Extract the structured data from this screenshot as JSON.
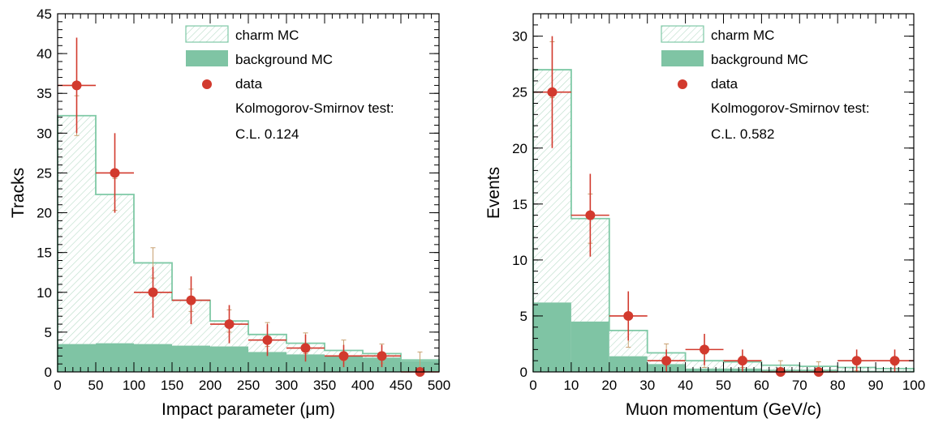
{
  "chart_data": [
    {
      "type": "histogram",
      "xlabel": "Impact parameter (μm)",
      "ylabel": "Tracks",
      "xlim": [
        0,
        500
      ],
      "ylim": [
        0,
        45
      ],
      "xticks": [
        0,
        50,
        100,
        150,
        200,
        250,
        300,
        350,
        400,
        450,
        500
      ],
      "yticks": [
        0,
        5,
        10,
        15,
        20,
        25,
        30,
        35,
        40,
        45
      ],
      "bin_edges": [
        0,
        50,
        100,
        150,
        200,
        250,
        300,
        350,
        400,
        450,
        500
      ],
      "series": [
        {
          "name": "charm MC",
          "kind": "hatched-step",
          "values": [
            32.2,
            22.3,
            13.7,
            9.0,
            6.4,
            4.7,
            3.6,
            2.7,
            2.3,
            1.5
          ],
          "errors": [
            2.5,
            2.0,
            1.9,
            1.4,
            1.4,
            1.5,
            1.3,
            1.3,
            1.2,
            1.0
          ]
        },
        {
          "name": "background MC",
          "kind": "filled",
          "values": [
            3.5,
            3.6,
            3.5,
            3.3,
            3.2,
            2.5,
            2.2,
            2.0,
            1.8,
            1.4
          ]
        },
        {
          "name": "data",
          "kind": "points",
          "values": [
            36,
            25,
            10,
            9,
            6,
            4,
            3,
            2,
            2,
            0
          ],
          "errors": [
            6.0,
            5.0,
            3.2,
            3.0,
            2.4,
            2.0,
            1.7,
            1.4,
            1.4,
            0
          ]
        }
      ],
      "legend": {
        "position": "top-right",
        "entries": [
          "charm MC",
          "background MC",
          "data"
        ],
        "notes": [
          "Kolmogorov-Smirnov test:",
          "C.L. 0.124"
        ]
      },
      "grid": false
    },
    {
      "type": "histogram",
      "xlabel": "Muon momentum (GeV/c)",
      "ylabel": "Events",
      "xlim": [
        0,
        100
      ],
      "ylim": [
        0,
        32
      ],
      "xticks": [
        0,
        10,
        20,
        30,
        40,
        50,
        60,
        70,
        80,
        90,
        100
      ],
      "yticks": [
        0,
        5,
        10,
        15,
        20,
        25,
        30
      ],
      "bin_edges": [
        0,
        10,
        20,
        30,
        40,
        50,
        60,
        70,
        80,
        90,
        100
      ],
      "series": [
        {
          "name": "charm MC",
          "kind": "hatched-step",
          "values": [
            27.0,
            13.7,
            3.7,
            1.7,
            1.0,
            0.9,
            0.6,
            0.5,
            0.4,
            0.3
          ],
          "errors": [
            2.5,
            2.2,
            1.5,
            0.8,
            0.6,
            0.5,
            0.4,
            0.4,
            0.3,
            0.3
          ]
        },
        {
          "name": "background MC",
          "kind": "filled",
          "values": [
            6.2,
            4.5,
            1.4,
            0.7,
            0.3,
            0.3,
            0.2,
            0.2,
            0.1,
            0.1
          ]
        },
        {
          "name": "data",
          "kind": "points",
          "values": [
            25,
            14,
            5,
            1,
            2,
            1,
            0,
            0,
            1,
            1
          ],
          "errors": [
            5.0,
            3.7,
            2.2,
            1.0,
            1.4,
            1.0,
            0,
            0,
            1.0,
            1.0
          ]
        }
      ],
      "legend": {
        "position": "top-right",
        "entries": [
          "charm MC",
          "background MC",
          "data"
        ],
        "notes": [
          "Kolmogorov-Smirnov test:",
          "C.L. 0.582"
        ]
      },
      "grid": false
    }
  ],
  "colors": {
    "charm_mc": "#7fc9a6",
    "background_mc": "#7fc4a4",
    "data": "#d23a2e",
    "mc_error": "#c8a070"
  }
}
